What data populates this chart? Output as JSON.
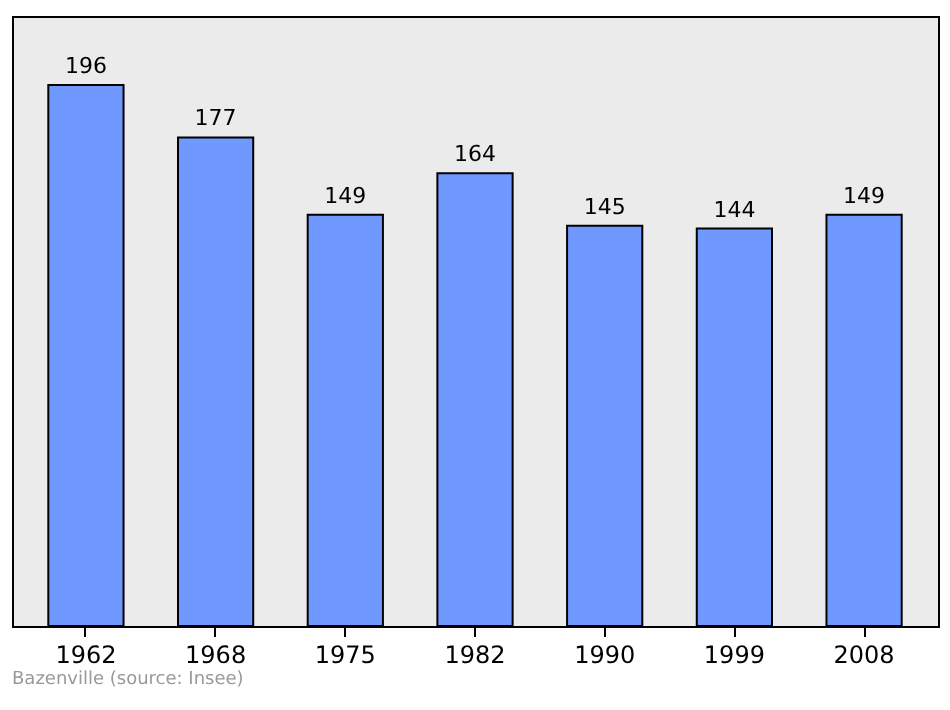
{
  "chart_data": {
    "type": "bar",
    "categories": [
      "1962",
      "1968",
      "1975",
      "1982",
      "1990",
      "1999",
      "2008"
    ],
    "values": [
      196,
      177,
      149,
      164,
      145,
      144,
      149
    ],
    "color": "#7099ff",
    "ylim": [
      0,
      221
    ],
    "data_labels": true,
    "grid": false,
    "annotations": [
      "Bazenville    (source: Insee)"
    ]
  }
}
